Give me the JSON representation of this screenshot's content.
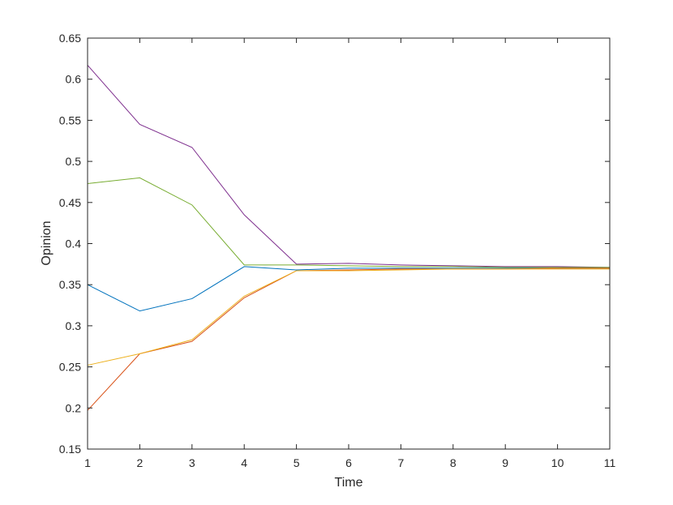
{
  "chart_data": {
    "type": "line",
    "title": "",
    "xlabel": "Time",
    "ylabel": "Opinion",
    "xlim": [
      1,
      11
    ],
    "ylim": [
      0.15,
      0.65
    ],
    "xticks": [
      1,
      2,
      3,
      4,
      5,
      6,
      7,
      8,
      9,
      10,
      11
    ],
    "yticks": [
      0.15,
      0.2,
      0.25,
      0.3,
      0.35,
      0.4,
      0.45,
      0.5,
      0.55,
      0.6,
      0.65
    ],
    "ytick_labels": [
      "0.15",
      "0.2",
      "0.25",
      "0.3",
      "0.35",
      "0.4",
      "0.45",
      "0.5",
      "0.55",
      "0.6",
      "0.65"
    ],
    "grid": false,
    "box": true,
    "x": [
      1,
      2,
      3,
      4,
      5,
      6,
      7,
      8,
      9,
      10,
      11
    ],
    "series": [
      {
        "color": "#0072BD",
        "values": [
          0.35,
          0.318,
          0.333,
          0.372,
          0.368,
          0.37,
          0.37,
          0.37,
          0.37,
          0.37,
          0.37
        ]
      },
      {
        "color": "#D95319",
        "values": [
          0.197,
          0.266,
          0.281,
          0.334,
          0.367,
          0.368,
          0.369,
          0.369,
          0.369,
          0.37,
          0.37
        ]
      },
      {
        "color": "#EDB120",
        "values": [
          0.252,
          0.266,
          0.283,
          0.336,
          0.367,
          0.367,
          0.368,
          0.369,
          0.369,
          0.369,
          0.369
        ]
      },
      {
        "color": "#7E2F8E",
        "values": [
          0.617,
          0.545,
          0.517,
          0.435,
          0.375,
          0.376,
          0.374,
          0.373,
          0.372,
          0.372,
          0.371
        ]
      },
      {
        "color": "#77AC30",
        "values": [
          0.473,
          0.48,
          0.447,
          0.374,
          0.374,
          0.373,
          0.372,
          0.372,
          0.371,
          0.371,
          0.371
        ]
      }
    ]
  }
}
